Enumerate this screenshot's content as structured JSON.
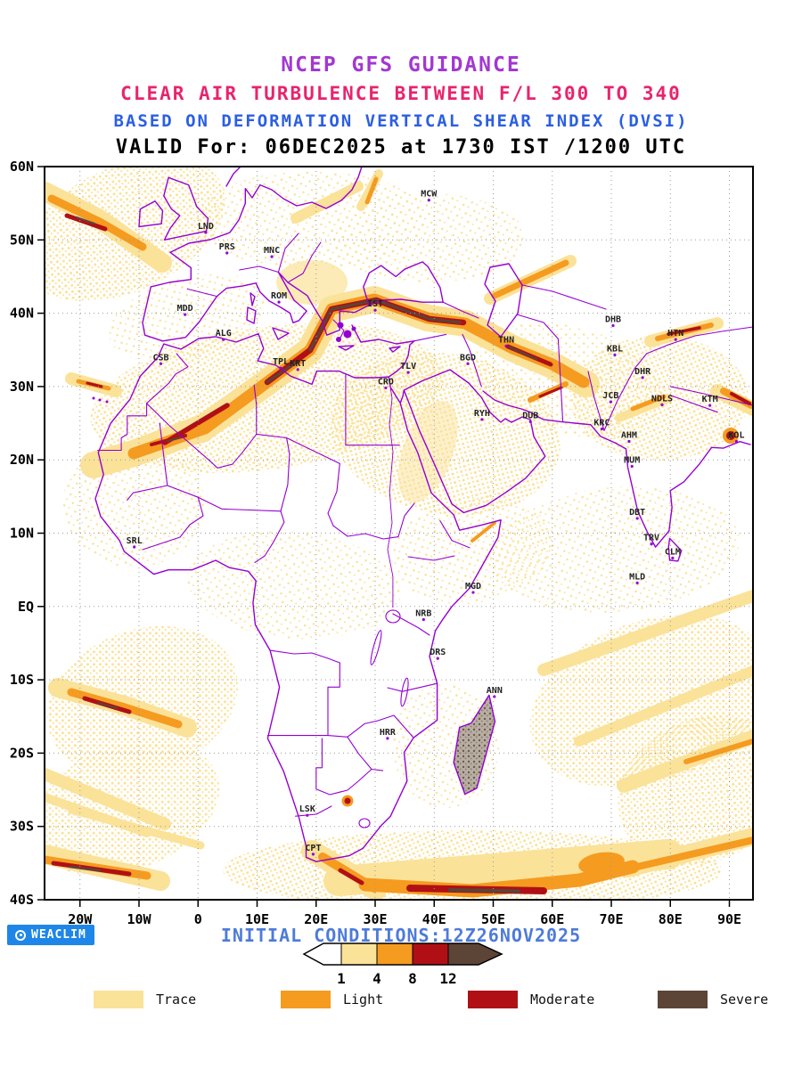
{
  "header": {
    "line1": "NCEP GFS GUIDANCE",
    "line2": "CLEAR AIR TURBULENCE BETWEEN F/L 300 TO 340",
    "line3": "BASED ON DEFORMATION VERTICAL SHEAR INDEX (DVSI)",
    "line4": "VALID For: 06DEC2025 at 1730 IST /1200 UTC"
  },
  "map": {
    "x_ticks": [
      "20W",
      "10W",
      "0",
      "10E",
      "20E",
      "30E",
      "40E",
      "50E",
      "60E",
      "70E",
      "80E",
      "90E"
    ],
    "y_ticks": [
      "60N",
      "50N",
      "40N",
      "30N",
      "20N",
      "10N",
      "EQ",
      "10S",
      "20S",
      "30S",
      "40S"
    ],
    "stations": [
      {
        "code": "MCW",
        "lon": 39.1,
        "lat": 55.9
      },
      {
        "code": "LND",
        "lon": 1.3,
        "lat": 51.5
      },
      {
        "code": "PRS",
        "lon": 4.9,
        "lat": 48.7
      },
      {
        "code": "MNC",
        "lon": 12.5,
        "lat": 48.2
      },
      {
        "code": "ROM",
        "lon": 13.7,
        "lat": 42.0
      },
      {
        "code": "IST",
        "lon": 30.0,
        "lat": 40.9
      },
      {
        "code": "MDD",
        "lon": -2.2,
        "lat": 40.3
      },
      {
        "code": "ALG",
        "lon": 4.3,
        "lat": 36.9
      },
      {
        "code": "CSB",
        "lon": -6.3,
        "lat": 33.6
      },
      {
        "code": "TPL",
        "lon": 14.0,
        "lat": 33.0
      },
      {
        "code": "KRT",
        "lon": 16.9,
        "lat": 32.8
      },
      {
        "code": "CRO",
        "lon": 31.8,
        "lat": 30.3
      },
      {
        "code": "TLV",
        "lon": 35.6,
        "lat": 32.4
      },
      {
        "code": "BGD",
        "lon": 45.7,
        "lat": 33.6
      },
      {
        "code": "THN",
        "lon": 52.2,
        "lat": 36.0
      },
      {
        "code": "DHB",
        "lon": 70.3,
        "lat": 38.8
      },
      {
        "code": "KBL",
        "lon": 70.6,
        "lat": 34.8
      },
      {
        "code": "HTN",
        "lon": 80.9,
        "lat": 36.9
      },
      {
        "code": "DHR",
        "lon": 75.3,
        "lat": 31.7
      },
      {
        "code": "JCB",
        "lon": 69.9,
        "lat": 28.4
      },
      {
        "code": "NDLS",
        "lon": 78.6,
        "lat": 28.0
      },
      {
        "code": "KTM",
        "lon": 86.7,
        "lat": 27.9
      },
      {
        "code": "RYH",
        "lon": 48.1,
        "lat": 26.0
      },
      {
        "code": "DUB",
        "lon": 56.3,
        "lat": 25.7
      },
      {
        "code": "KRC",
        "lon": 68.4,
        "lat": 24.7
      },
      {
        "code": "AHM",
        "lon": 73.0,
        "lat": 23.0
      },
      {
        "code": "MUM",
        "lon": 73.5,
        "lat": 19.6
      },
      {
        "code": "KOL",
        "lon": 91.2,
        "lat": 23.0
      },
      {
        "code": "DBT",
        "lon": 74.4,
        "lat": 12.5
      },
      {
        "code": "TRV",
        "lon": 76.8,
        "lat": 9.0
      },
      {
        "code": "CLM",
        "lon": 80.4,
        "lat": 7.1
      },
      {
        "code": "MLD",
        "lon": 74.4,
        "lat": 3.7
      },
      {
        "code": "SRL",
        "lon": -10.8,
        "lat": 8.6
      },
      {
        "code": "MGD",
        "lon": 46.6,
        "lat": 2.4
      },
      {
        "code": "NRB",
        "lon": 38.2,
        "lat": -1.3
      },
      {
        "code": "DRS",
        "lon": 40.6,
        "lat": -6.6
      },
      {
        "code": "ANN",
        "lon": 50.2,
        "lat": -11.8
      },
      {
        "code": "HRR",
        "lon": 32.1,
        "lat": -17.5
      },
      {
        "code": "LSK",
        "lon": 18.5,
        "lat": -28.0
      },
      {
        "code": "CPT",
        "lon": 19.5,
        "lat": -33.3
      }
    ]
  },
  "colorbar": {
    "tick_labels": [
      "1",
      "4",
      "8",
      "12"
    ]
  },
  "legend": {
    "items": [
      {
        "label": "Trace",
        "color": "#FBE299"
      },
      {
        "label": "Light",
        "color": "#F59B20"
      },
      {
        "label": "Moderate",
        "color": "#B01015"
      },
      {
        "label": "Severe",
        "color": "#5C4437"
      }
    ]
  },
  "footer": {
    "initial_conditions": "INITIAL CONDITIONS:12Z26NOV2025",
    "logo_text": "WEACLIM"
  },
  "palette": {
    "below": "#FFFFFF",
    "trace": "#FBE299",
    "light": "#F59B20",
    "moderate": "#B01015",
    "severe": "#5C4437",
    "map_outline": "#9400D3",
    "title1": "#A238D2",
    "title2": "#E8246E",
    "title3": "#2B5FE3",
    "footer_blue": "#4E7BD9",
    "logo_blue": "#1E86E8"
  }
}
